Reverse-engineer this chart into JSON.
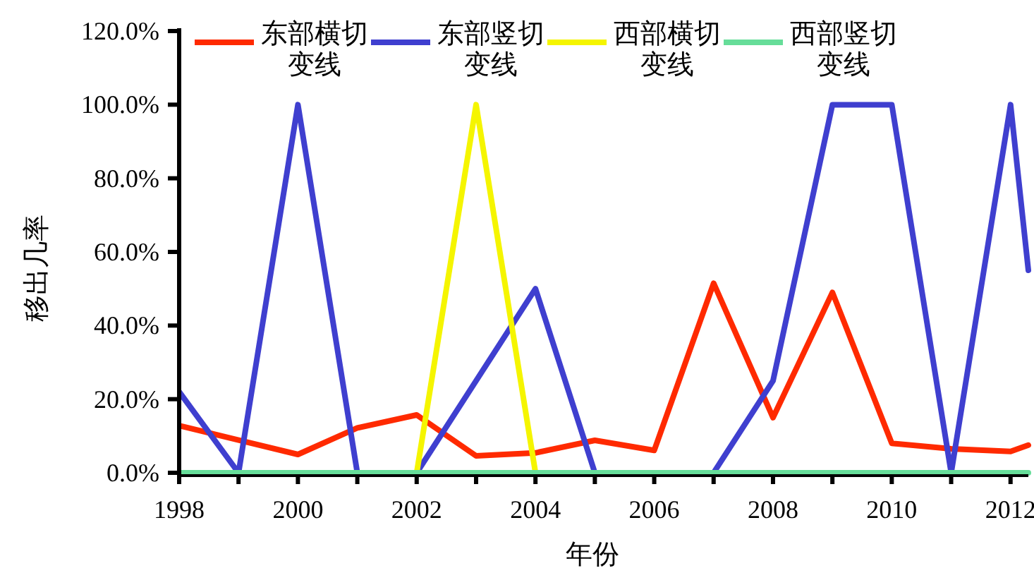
{
  "chart_data": {
    "type": "line",
    "xlabel": "年份",
    "ylabel": "移出几率",
    "legend": "top",
    "grid": false,
    "marker": "none",
    "line_style": "solid",
    "x": [
      1998,
      1999,
      2000,
      2001,
      2002,
      2003,
      2004,
      2005,
      2006,
      2007,
      2008,
      2009,
      2010,
      2011,
      2012,
      2012.3
    ],
    "xlim": [
      1998,
      2012.3
    ],
    "xticks": [
      1998,
      {
        "value": 1999,
        "label": null
      },
      2000,
      {
        "value": 2001,
        "label": null
      },
      2002,
      {
        "value": 2003,
        "label": null
      },
      2004,
      {
        "value": 2005,
        "label": null
      },
      2006,
      {
        "value": 2007,
        "label": null
      },
      2008,
      {
        "value": 2009,
        "label": null
      },
      2010,
      {
        "value": 2011,
        "label": null
      },
      2012
    ],
    "ylim": [
      0,
      120
    ],
    "yticks": [
      {
        "value": 0,
        "label": "0.0%"
      },
      {
        "value": 20,
        "label": "20.0%"
      },
      {
        "value": 40,
        "label": "40.0%"
      },
      {
        "value": 60,
        "label": "60.0%"
      },
      {
        "value": 80,
        "label": "80.0%"
      },
      {
        "value": 100,
        "label": "100.0%"
      },
      {
        "value": 120,
        "label": "120.0%"
      }
    ],
    "series": [
      {
        "name": "东部横切变线",
        "color": "#ff2a00",
        "values": [
          12.8,
          8.9,
          5.0,
          12.2,
          15.7,
          4.6,
          5.4,
          8.8,
          6.1,
          51.5,
          15,
          49,
          8,
          6.5,
          5.8,
          7.5
        ]
      },
      {
        "name": "东部竖切变线",
        "color": "#3f3fcf",
        "values": [
          22,
          0,
          100,
          0,
          0,
          25,
          50,
          0,
          0,
          0,
          25,
          100,
          100,
          0,
          100,
          55
        ]
      },
      {
        "name": "西部横切变线",
        "color": "#f5f500",
        "values": [
          null,
          null,
          null,
          null,
          0,
          100,
          0,
          null,
          null,
          null,
          null,
          null,
          null,
          null,
          null,
          null
        ]
      },
      {
        "name": "西部竖切变线",
        "color": "#66dd99",
        "values": [
          0,
          0,
          0,
          0,
          0,
          0,
          0,
          0,
          0,
          0,
          0,
          0,
          0,
          0,
          0,
          0
        ]
      }
    ]
  }
}
